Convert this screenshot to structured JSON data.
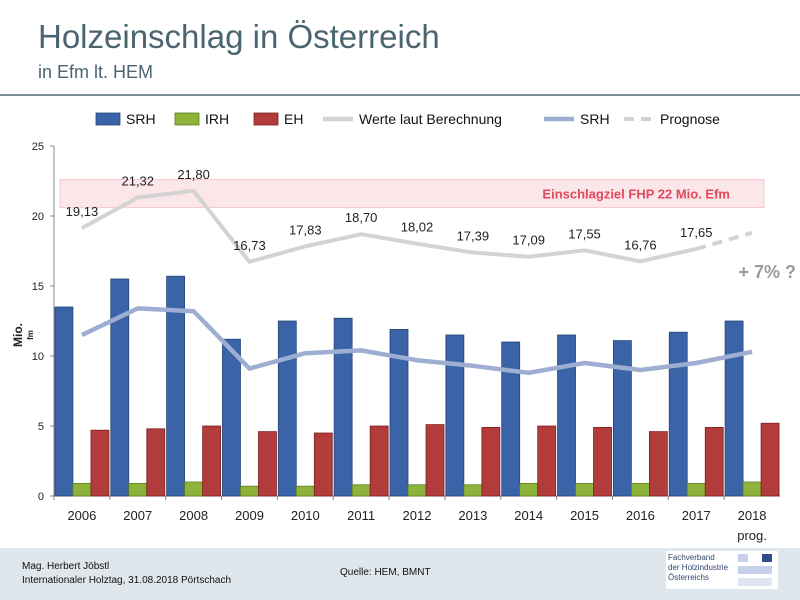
{
  "header": {
    "title": "Holzeinschlag in Österreich",
    "subtitle": "in Efm lt. HEM"
  },
  "colors": {
    "srh_bar": "#3b64a8",
    "irh_bar": "#8db33a",
    "eh_bar": "#b23b3b",
    "berechnung_line": "#d3d3d3",
    "srh_line": "#9eaed2",
    "target_band": "#f6c7cf",
    "target_text": "#e0495c",
    "forecast_text": "#9a9a9a"
  },
  "chart_data": {
    "type": "bar",
    "categories": [
      "2006",
      "2007",
      "2008",
      "2009",
      "2010",
      "2011",
      "2012",
      "2013",
      "2014",
      "2015",
      "2016",
      "2017",
      "2018"
    ],
    "category_sublabels": {
      "2018": "prog."
    },
    "ylabel_main": "Mio.",
    "ylabel_sub": "fm",
    "ylim": [
      0,
      25
    ],
    "yticks": [
      "0",
      "5",
      "10",
      "15",
      "20",
      "25"
    ],
    "grid": false,
    "legend_position": "top",
    "legend": [
      {
        "label": "SRH",
        "style": "bar",
        "color": "#3b64a8"
      },
      {
        "label": "IRH",
        "style": "bar",
        "color": "#8db33a"
      },
      {
        "label": "EH",
        "style": "bar",
        "color": "#b23b3b"
      },
      {
        "label": "Werte laut Berechnung",
        "style": "line",
        "color": "#d3d3d3"
      },
      {
        "label": "SRH",
        "style": "line",
        "color": "#9eaed2"
      },
      {
        "label": "Prognose",
        "style": "dashed",
        "color": "#d3d3d3"
      }
    ],
    "bar_series": [
      {
        "name": "SRH",
        "color": "#3b64a8",
        "values": [
          13.5,
          15.5,
          15.7,
          11.2,
          12.5,
          12.7,
          11.9,
          11.5,
          11.0,
          11.5,
          11.1,
          11.7,
          12.5
        ]
      },
      {
        "name": "IRH",
        "color": "#8db33a",
        "values": [
          0.9,
          0.9,
          1.0,
          0.7,
          0.7,
          0.8,
          0.8,
          0.8,
          0.9,
          0.9,
          0.9,
          0.9,
          1.0
        ]
      },
      {
        "name": "EH",
        "color": "#b23b3b",
        "values": [
          4.7,
          4.8,
          5.0,
          4.6,
          4.5,
          5.0,
          5.1,
          4.9,
          5.0,
          4.9,
          4.6,
          4.9,
          5.2
        ]
      }
    ],
    "line_berechnung": {
      "name": "Werte laut Berechnung",
      "values": [
        19.13,
        21.32,
        21.8,
        16.73,
        17.83,
        18.7,
        18.02,
        17.39,
        17.09,
        17.55,
        16.76,
        17.65,
        18.8
      ],
      "labels": [
        "19,13",
        "21,32",
        "21,80",
        "16,73",
        "17,83",
        "18,70",
        "18,02",
        "17,39",
        "17,09",
        "17,55",
        "16,76",
        "17,65",
        ""
      ],
      "forecast_from_index": 11
    },
    "line_srh": {
      "name": "SRH",
      "values": [
        11.5,
        13.4,
        13.2,
        9.1,
        10.2,
        10.4,
        9.7,
        9.3,
        8.8,
        9.5,
        9.0,
        9.5,
        10.3
      ]
    },
    "target_band": {
      "from": 20.6,
      "to": 22.6,
      "label": "Einschlagziel FHP 22 Mio. Efm"
    },
    "forecast_annotation": "+ 7% ?"
  },
  "footer": {
    "author": "Mag. Herbert Jöbstl",
    "event": "Internationaler Holztag, 31.08.2018 Pörtschach",
    "source": "Quelle: HEM, BMNT",
    "logo_lines": [
      "Fachverband",
      "der Holzindustrie",
      "Österreichs"
    ]
  }
}
